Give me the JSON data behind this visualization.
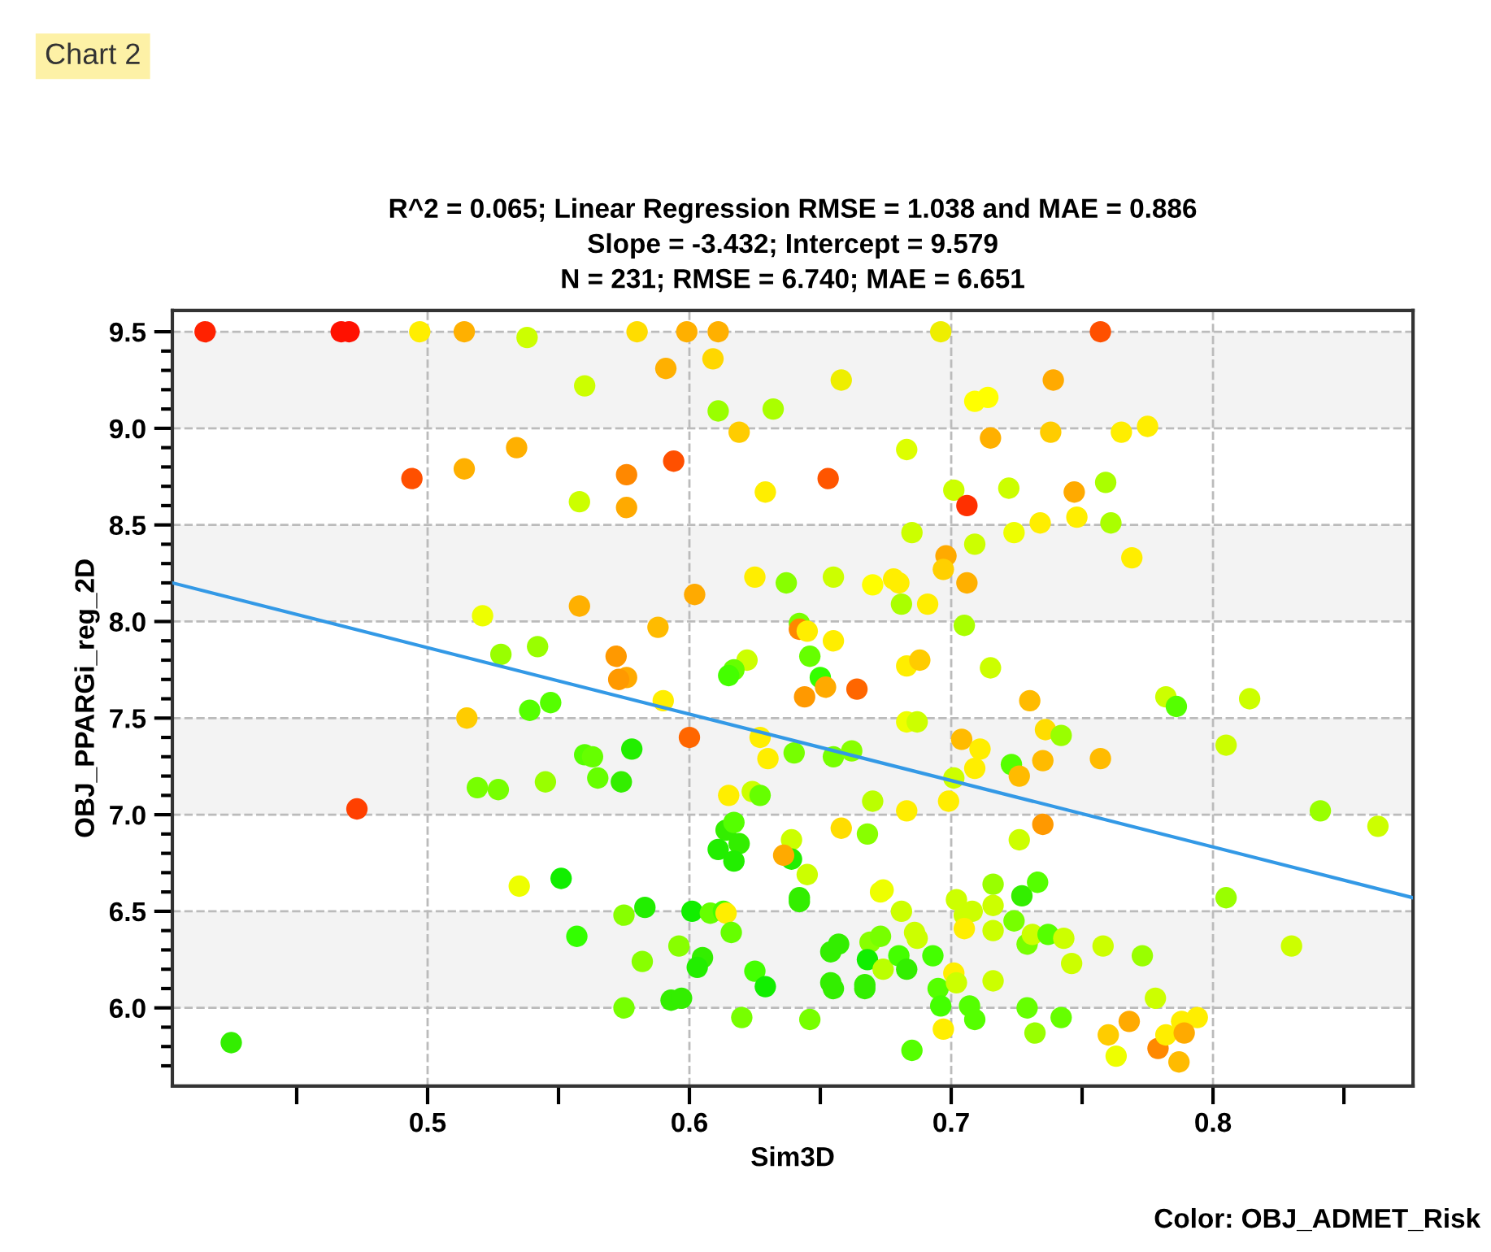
{
  "chart_data": {
    "type": "scatter",
    "title": "R^2 = 0.065; Linear Regression RMSE = 1.038 and MAE = 0.886\nSlope = -3.432; Intercept = 9.579\nN = 231; RMSE = 6.740; MAE = 6.651",
    "xlabel": "Sim3D",
    "ylabel": "OBJ_PPARGi_reg_2D",
    "annotations": [
      "Chart 2",
      "Color: OBJ_ADMET_Risk"
    ],
    "xlim": [
      0.4025,
      0.8764
    ],
    "ylim": [
      5.595,
      9.61
    ],
    "xticks": [
      {
        "value": 0.45,
        "label": null
      },
      0.5,
      {
        "value": 0.55,
        "label": null
      },
      0.6,
      {
        "value": 0.65,
        "label": null
      },
      0.7,
      {
        "value": 0.75,
        "label": null
      },
      0.8,
      {
        "value": 0.85,
        "label": null
      }
    ],
    "yticks": [
      {
        "value": 5.7,
        "label": null
      },
      {
        "value": 5.8,
        "label": null
      },
      {
        "value": 5.9,
        "label": null
      },
      {
        "value": 6.0,
        "label": "6.0"
      },
      {
        "value": 6.1,
        "label": null
      },
      {
        "value": 6.2,
        "label": null
      },
      {
        "value": 6.3,
        "label": null
      },
      {
        "value": 6.4,
        "label": null
      },
      6.5,
      {
        "value": 6.6,
        "label": null
      },
      {
        "value": 6.7,
        "label": null
      },
      {
        "value": 6.8,
        "label": null
      },
      {
        "value": 6.9,
        "label": null
      },
      {
        "value": 7.0,
        "label": "7.0"
      },
      {
        "value": 7.1,
        "label": null
      },
      {
        "value": 7.2,
        "label": null
      },
      {
        "value": 7.3,
        "label": null
      },
      {
        "value": 7.4,
        "label": null
      },
      7.5,
      {
        "value": 7.6,
        "label": null
      },
      {
        "value": 7.7,
        "label": null
      },
      {
        "value": 7.8,
        "label": null
      },
      {
        "value": 7.9,
        "label": null
      },
      {
        "value": 8.0,
        "label": "8.0"
      },
      {
        "value": 8.1,
        "label": null
      },
      {
        "value": 8.2,
        "label": null
      },
      {
        "value": 8.3,
        "label": null
      },
      {
        "value": 8.4,
        "label": null
      },
      8.5,
      {
        "value": 8.6,
        "label": null
      },
      {
        "value": 8.7,
        "label": null
      },
      {
        "value": 8.8,
        "label": null
      },
      {
        "value": 8.9,
        "label": null
      },
      {
        "value": 9.0,
        "label": "9.0"
      },
      {
        "value": 9.1,
        "label": null
      },
      {
        "value": 9.2,
        "label": null
      },
      {
        "value": 9.3,
        "label": null
      },
      {
        "value": 9.4,
        "label": null
      },
      9.5
    ],
    "grid": true,
    "marker": "circle",
    "bands": [
      {
        "axis": "y",
        "from": 9.0,
        "to": 9.5,
        "color": "#f3f3f3"
      },
      {
        "axis": "y",
        "from": 8.0,
        "to": 8.5,
        "color": "#f3f3f3"
      },
      {
        "axis": "y",
        "from": 7.0,
        "to": 7.5,
        "color": "#f3f3f3"
      },
      {
        "axis": "y",
        "from": 6.0,
        "to": 6.5,
        "color": "#f3f3f3"
      }
    ],
    "series": [
      {
        "x": [
          0.415,
          0.467,
          0.47,
          0.497,
          0.514,
          0.538,
          0.56,
          0.534,
          0.514,
          0.494,
          0.558,
          0.558,
          0.521,
          0.528,
          0.542,
          0.58,
          0.599,
          0.611,
          0.696,
          0.609,
          0.591,
          0.658,
          0.611,
          0.632,
          0.709,
          0.714,
          0.619,
          0.715,
          0.683,
          0.594,
          0.576,
          0.653,
          0.576,
          0.629,
          0.701,
          0.706,
          0.685,
          0.709,
          0.698,
          0.697,
          0.706,
          0.602,
          0.625,
          0.637,
          0.655,
          0.67,
          0.678,
          0.68,
          0.681,
          0.691,
          0.705,
          0.588,
          0.642,
          0.642,
          0.645,
          0.655,
          0.646,
          0.683,
          0.688,
          0.715,
          0.572,
          0.576,
          0.573,
          0.622,
          0.617,
          0.615,
          0.65,
          0.652,
          0.664,
          0.644,
          0.59,
          0.757,
          0.739,
          0.738,
          0.765,
          0.775,
          0.722,
          0.747,
          0.759,
          0.724,
          0.734,
          0.748,
          0.761,
          0.769,
          0.515,
          0.539,
          0.547,
          0.519,
          0.527,
          0.545,
          0.56,
          0.473,
          0.535,
          0.551,
          0.557,
          0.425,
          0.6,
          0.627,
          0.63,
          0.64,
          0.655,
          0.662,
          0.683,
          0.687,
          0.704,
          0.711,
          0.709,
          0.701,
          0.699,
          0.683,
          0.67,
          0.658,
          0.668,
          0.563,
          0.565,
          0.574,
          0.578,
          0.615,
          0.624,
          0.627,
          0.614,
          0.617,
          0.611,
          0.619,
          0.617,
          0.639,
          0.639,
          0.636,
          0.645,
          0.642,
          0.642,
          0.673,
          0.674,
          0.681,
          0.575,
          0.583,
          0.601,
          0.608,
          0.613,
          0.614,
          0.616,
          0.596,
          0.582,
          0.605,
          0.603,
          0.625,
          0.629,
          0.593,
          0.597,
          0.575,
          0.62,
          0.646,
          0.654,
          0.657,
          0.654,
          0.655,
          0.667,
          0.667,
          0.669,
          0.673,
          0.668,
          0.674,
          0.68,
          0.683,
          0.686,
          0.687,
          0.693,
          0.695,
          0.696,
          0.697,
          0.685,
          0.701,
          0.702,
          0.702,
          0.705,
          0.708,
          0.705,
          0.707,
          0.709,
          0.716,
          0.716,
          0.716,
          0.716,
          0.73,
          0.782,
          0.786,
          0.814,
          0.736,
          0.742,
          0.735,
          0.757,
          0.723,
          0.726,
          0.805,
          0.841,
          0.863,
          0.735,
          0.726,
          0.727,
          0.733,
          0.724,
          0.729,
          0.731,
          0.737,
          0.743,
          0.746,
          0.758,
          0.773,
          0.805,
          0.83,
          0.778,
          0.729,
          0.742,
          0.732,
          0.76,
          0.768,
          0.763,
          0.779,
          0.782,
          0.788,
          0.794,
          0.789,
          0.787
        ],
        "values": [
          9.5,
          9.5,
          9.5,
          9.5,
          9.5,
          9.47,
          9.22,
          8.9,
          8.79,
          8.74,
          8.62,
          8.08,
          8.03,
          7.83,
          7.87,
          9.5,
          9.5,
          9.5,
          9.5,
          9.36,
          9.31,
          9.25,
          9.09,
          9.1,
          9.14,
          9.16,
          8.98,
          8.95,
          8.89,
          8.83,
          8.76,
          8.74,
          8.59,
          8.67,
          8.68,
          8.6,
          8.46,
          8.4,
          8.34,
          8.27,
          8.2,
          8.14,
          8.23,
          8.2,
          8.23,
          8.19,
          8.22,
          8.2,
          8.09,
          8.09,
          7.98,
          7.97,
          7.99,
          7.96,
          7.95,
          7.9,
          7.82,
          7.77,
          7.8,
          7.76,
          7.82,
          7.71,
          7.7,
          7.8,
          7.75,
          7.72,
          7.71,
          7.66,
          7.65,
          7.61,
          7.59,
          9.5,
          9.25,
          8.98,
          8.98,
          9.01,
          8.69,
          8.67,
          8.72,
          8.46,
          8.51,
          8.54,
          8.51,
          8.33,
          7.5,
          7.54,
          7.58,
          7.14,
          7.13,
          7.17,
          7.31,
          7.03,
          6.63,
          6.67,
          6.37,
          5.82,
          7.4,
          7.4,
          7.29,
          7.32,
          7.3,
          7.33,
          7.48,
          7.48,
          7.39,
          7.34,
          7.24,
          7.19,
          7.07,
          7.02,
          7.07,
          6.93,
          6.9,
          7.3,
          7.19,
          7.17,
          7.34,
          7.1,
          7.12,
          7.1,
          6.92,
          6.96,
          6.82,
          6.85,
          6.76,
          6.87,
          6.77,
          6.79,
          6.69,
          6.57,
          6.55,
          6.6,
          6.61,
          6.5,
          6.48,
          6.52,
          6.5,
          6.49,
          6.5,
          6.49,
          6.39,
          6.32,
          6.24,
          6.26,
          6.21,
          6.19,
          6.11,
          6.04,
          6.05,
          6.0,
          5.95,
          5.94,
          6.29,
          6.33,
          6.13,
          6.1,
          6.12,
          6.1,
          6.34,
          6.37,
          6.25,
          6.2,
          6.27,
          6.2,
          6.39,
          6.36,
          6.27,
          6.1,
          6.01,
          5.89,
          5.78,
          6.18,
          6.13,
          6.56,
          6.48,
          6.5,
          6.41,
          6.01,
          5.94,
          6.64,
          6.53,
          6.4,
          6.14,
          7.59,
          7.61,
          7.56,
          7.6,
          7.44,
          7.41,
          7.28,
          7.29,
          7.26,
          7.2,
          7.36,
          7.02,
          6.94,
          6.95,
          6.87,
          6.58,
          6.65,
          6.45,
          6.33,
          6.38,
          6.38,
          6.36,
          6.23,
          6.32,
          6.27,
          6.57,
          6.32,
          6.05,
          6.0,
          5.95,
          5.87,
          5.86,
          5.93,
          5.75,
          5.79,
          5.86,
          5.93,
          5.95,
          5.87,
          5.72
        ],
        "colors": [
          "#ff2200",
          "#ff1100",
          "#ff1100",
          "#ffee00",
          "#ffb000",
          "#ccff00",
          "#ccff00",
          "#ffb000",
          "#ffb000",
          "#ff5000",
          "#ccff00",
          "#ffb000",
          "#eeff00",
          "#99ff00",
          "#99ff00",
          "#ffdd00",
          "#ffb000",
          "#ffb000",
          "#eeee00",
          "#ffd700",
          "#ffb000",
          "#eeee00",
          "#99ff00",
          "#aaff00",
          "#ffff00",
          "#ffff00",
          "#ffcc00",
          "#ffb000",
          "#ddff00",
          "#ff5000",
          "#ff8800",
          "#ff5500",
          "#ffaa00",
          "#ffee00",
          "#ccff00",
          "#ff3000",
          "#ccff00",
          "#ccff00",
          "#ffaa00",
          "#ffd000",
          "#ffb000",
          "#ffaa00",
          "#ffee00",
          "#88ff00",
          "#ccff00",
          "#ffff00",
          "#ffee00",
          "#ffee00",
          "#aaff00",
          "#ffee00",
          "#aaff00",
          "#ffbb00",
          "#77ff00",
          "#ff8800",
          "#ffee00",
          "#ffee00",
          "#66ff00",
          "#ffee00",
          "#ffcc00",
          "#ccff00",
          "#ff9900",
          "#ffaa00",
          "#ff9900",
          "#ccff00",
          "#66ff00",
          "#44ff00",
          "#33ff00",
          "#ffaa00",
          "#ff6600",
          "#ff9900",
          "#ffee00",
          "#ff5000",
          "#ffaa00",
          "#ffcc00",
          "#ffee00",
          "#ffee00",
          "#ccff00",
          "#ffaa00",
          "#aaff00",
          "#eeff00",
          "#ffee00",
          "#ffee00",
          "#aaff00",
          "#ffee00",
          "#ffcc00",
          "#55ff00",
          "#55ff00",
          "#77ff00",
          "#77ff00",
          "#99ff00",
          "#55ff00",
          "#ff4000",
          "#eeff00",
          "#11ee00",
          "#33ff00",
          "#33ee00",
          "#ff6600",
          "#ffee00",
          "#ffee00",
          "#77ff00",
          "#77ff00",
          "#88ff00",
          "#eeff00",
          "#ccff00",
          "#ffbb00",
          "#ffee00",
          "#ffee00",
          "#ccff00",
          "#ffee00",
          "#ffee00",
          "#bbff00",
          "#ffdd00",
          "#88ff00",
          "#66ff00",
          "#66ff00",
          "#33ee00",
          "#22ee00",
          "#ffee00",
          "#ccff00",
          "#66ff00",
          "#33ee00",
          "#55ff00",
          "#22ee00",
          "#33ee00",
          "#22ee00",
          "#ccff00",
          "#22ee00",
          "#ffaa00",
          "#ccff00",
          "#33ee00",
          "#33ee00",
          "#eeff00",
          "#eeff00",
          "#ccff00",
          "#88ff00",
          "#22ee00",
          "#11ee00",
          "#66ff00",
          "#44ff00",
          "#ffee00",
          "#66ff00",
          "#88ff00",
          "#88ff00",
          "#33ee00",
          "#22ee00",
          "#44ff00",
          "#11ee00",
          "#33ee00",
          "#33ee00",
          "#77ff00",
          "#77ff00",
          "#77ff00",
          "#33ee00",
          "#33ee00",
          "#33ee00",
          "#33ee00",
          "#33ee00",
          "#33ee00",
          "#88ff00",
          "#77ff00",
          "#11ee00",
          "#bbff00",
          "#44ff00",
          "#33ee00",
          "#ccff00",
          "#ccff00",
          "#44ff00",
          "#55ff00",
          "#44ff00",
          "#ffee00",
          "#55ff00",
          "#ffee00",
          "#ccff00",
          "#ccff00",
          "#ccff00",
          "#ccff00",
          "#ffee00",
          "#55ff00",
          "#55ff00",
          "#99ff00",
          "#ccff00",
          "#ccff00",
          "#ccff00",
          "#ffbb00",
          "#ccff00",
          "#55ff00",
          "#ccff00",
          "#ffdd00",
          "#99ff00",
          "#ffbb00",
          "#ffbb00",
          "#55ff00",
          "#ffbb00",
          "#ccff00",
          "#99ff00",
          "#ccff00",
          "#ff9900",
          "#ccff00",
          "#33ee00",
          "#55ff00",
          "#77ff00",
          "#77ff00",
          "#ccff00",
          "#55ff00",
          "#ccff00",
          "#ccff00",
          "#ccff00",
          "#99ff00",
          "#99ff00",
          "#ccff00",
          "#ccff00",
          "#66ff00",
          "#66ff00",
          "#99ff00",
          "#ffcc00",
          "#ffaa00",
          "#eeff00",
          "#ff8800",
          "#ffee00",
          "#ffee00",
          "#ffee00",
          "#ffaa00",
          "#ffbb00"
        ]
      },
      {
        "type": "line",
        "color": "#3399e6",
        "marker": "none",
        "x": [
          0.4025,
          0.8764
        ],
        "values": [
          8.2,
          6.57
        ]
      }
    ]
  }
}
